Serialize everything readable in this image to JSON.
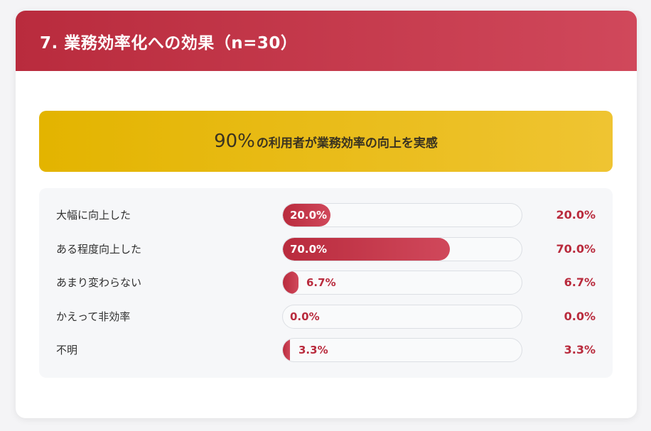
{
  "header": {
    "title": "7. 業務効率化への効果（n=30）"
  },
  "banner": {
    "highlight": "90%",
    "text": "の利用者が業務効率の向上を実感"
  },
  "colors": {
    "accent": "#b92b3d",
    "banner": "#e3b400"
  },
  "chart_data": {
    "type": "bar",
    "orientation": "horizontal",
    "categories": [
      "大幅に向上した",
      "ある程度向上した",
      "あまり変わらない",
      "かえって非効率",
      "不明"
    ],
    "values": [
      20.0,
      70.0,
      6.7,
      0.0,
      3.3
    ],
    "value_labels": [
      "20.0%",
      "70.0%",
      "6.7%",
      "0.0%",
      "3.3%"
    ],
    "xlim": [
      0,
      100
    ]
  }
}
